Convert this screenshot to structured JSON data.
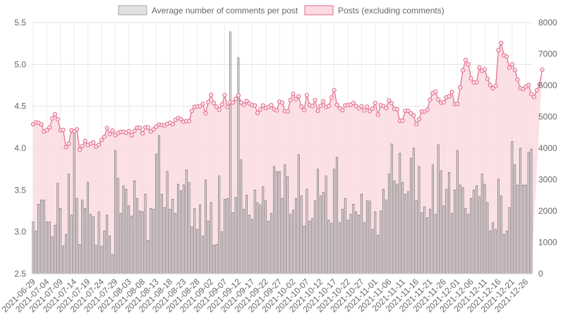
{
  "chart_data": {
    "type": "bar",
    "legend": [
      {
        "label": "Average number of comments per post",
        "color": "#a6a6a6",
        "fill": "#e0e0e0"
      },
      {
        "label": "Posts (excluding comments)",
        "color": "#e26a8a",
        "fill": "#fadbe2"
      }
    ],
    "left_axis": {
      "min": 2.5,
      "max": 5.5,
      "ticks": [
        "2.5",
        "3.0",
        "3.5",
        "4.0",
        "4.5",
        "5.0",
        "5.5"
      ]
    },
    "right_axis": {
      "min": 0,
      "max": 8000,
      "ticks": [
        "0",
        "1000",
        "2000",
        "3000",
        "4000",
        "5000",
        "6000",
        "7000",
        "8000"
      ]
    },
    "x_tick_labels": [
      "2021-06-29",
      "2021-07-04",
      "2021-07-09",
      "2021-07-14",
      "2021-07-19",
      "2021-07-24",
      "2021-07-29",
      "2021-08-03",
      "2021-08-08",
      "2021-08-13",
      "2021-08-18",
      "2021-08-23",
      "2021-08-28",
      "2021-09-02",
      "2021-09-07",
      "2021-09-12",
      "2021-09-17",
      "2021-09-22",
      "2021-09-27",
      "2021-10-02",
      "2021-10-07",
      "2021-10-12",
      "2021-10-17",
      "2021-10-22",
      "2021-10-27",
      "2021-11-01",
      "2021-11-06",
      "2021-11-11",
      "2021-11-16",
      "2021-11-21",
      "2021-11-26",
      "2021-12-01",
      "2021-12-06",
      "2021-12-11",
      "2021-12-16",
      "2021-12-21",
      "2021-12-26"
    ],
    "start_date": "2021-06-29",
    "series": [
      {
        "name": "Average number of comments per post",
        "axis": "left",
        "kind": "bar",
        "values": [
          3.12,
          3.01,
          3.33,
          3.38,
          3.38,
          3.12,
          3.12,
          2.94,
          3.08,
          3.58,
          3.28,
          2.83,
          2.97,
          3.69,
          3.2,
          4.18,
          3.4,
          2.85,
          3.38,
          3.28,
          3.59,
          3.21,
          3.18,
          2.84,
          3.24,
          2.83,
          3.01,
          3.2,
          2.95,
          2.73,
          3.97,
          3.64,
          3.22,
          3.55,
          3.51,
          3.31,
          3.19,
          3.61,
          3.4,
          3.25,
          3.24,
          3.45,
          2.9,
          3.28,
          3.27,
          3.93,
          4.15,
          3.45,
          3.29,
          3.72,
          3.27,
          3.39,
          3.22,
          3.57,
          3.49,
          3.56,
          3.74,
          3.59,
          3.06,
          3.28,
          3.03,
          3.32,
          2.95,
          3.62,
          3.13,
          3.35,
          2.84,
          2.85,
          3.67,
          3.0,
          3.39,
          3.4,
          5.39,
          3.23,
          3.41,
          5.08,
          3.86,
          3.27,
          3.44,
          3.2,
          3.15,
          3.5,
          3.35,
          3.32,
          3.54,
          3.37,
          3.13,
          3.22,
          3.78,
          3.72,
          3.72,
          3.4,
          3.8,
          3.66,
          3.21,
          3.26,
          3.4,
          3.92,
          3.43,
          3.07,
          3.51,
          3.13,
          3.16,
          3.37,
          3.75,
          3.43,
          3.47,
          3.67,
          3.14,
          3.1,
          3.75,
          3.89,
          3.11,
          3.27,
          3.4,
          3.14,
          3.21,
          3.33,
          3.24,
          3.2,
          3.45,
          3.11,
          3.37,
          3.37,
          3.03,
          3.24,
          2.96,
          3.25,
          3.51,
          3.38,
          3.69,
          4.05,
          3.61,
          3.57,
          3.94,
          3.59,
          3.45,
          3.48,
          3.88,
          4.0,
          3.37,
          3.78,
          3.23,
          3.3,
          3.17,
          3.27,
          3.8,
          3.21,
          4.04,
          3.73,
          3.31,
          3.51,
          3.71,
          3.22,
          3.5,
          3.97,
          3.56,
          3.53,
          3.28,
          3.21,
          3.4,
          3.5,
          3.55,
          3.42,
          3.69,
          3.57,
          3.35,
          3.01,
          3.11,
          3.03,
          3.63,
          3.43,
          2.97,
          3.01,
          3.29,
          4.08,
          3.8,
          3.56,
          4.0,
          3.56,
          3.56,
          3.95,
          3.99
        ]
      },
      {
        "name": "Posts (excluding comments)",
        "axis": "right",
        "kind": "area",
        "values": [
          4760,
          4820,
          4800,
          4760,
          4530,
          4570,
          4660,
          4950,
          5080,
          4920,
          4570,
          4580,
          4030,
          4140,
          4570,
          4540,
          4600,
          3950,
          4070,
          4230,
          4100,
          4140,
          4180,
          4050,
          4110,
          4260,
          4360,
          4640,
          4450,
          4560,
          4410,
          4480,
          4520,
          4520,
          4490,
          4540,
          4410,
          4550,
          4650,
          4650,
          4470,
          4660,
          4660,
          4530,
          4600,
          4680,
          4750,
          4740,
          4720,
          4770,
          4810,
          4760,
          4900,
          4960,
          4920,
          4840,
          4860,
          4860,
          5190,
          5320,
          5320,
          5340,
          5410,
          5110,
          5470,
          5700,
          5440,
          5320,
          5230,
          5390,
          5690,
          5310,
          5460,
          5450,
          5570,
          5680,
          5450,
          5380,
          5500,
          5420,
          5370,
          5360,
          5120,
          5230,
          5360,
          5280,
          5310,
          5370,
          5240,
          5200,
          5480,
          5450,
          5180,
          5170,
          5530,
          5730,
          5560,
          5650,
          5330,
          5210,
          5690,
          5370,
          5340,
          5530,
          5190,
          5350,
          5490,
          5310,
          5340,
          5610,
          5850,
          5380,
          5270,
          5210,
          5360,
          5380,
          5380,
          5440,
          5340,
          5270,
          5330,
          5200,
          5320,
          5180,
          5260,
          5440,
          5070,
          5370,
          5340,
          5280,
          5520,
          5430,
          5250,
          5240,
          4870,
          4880,
          5190,
          5190,
          5110,
          5040,
          4760,
          4920,
          5170,
          5160,
          5220,
          5540,
          5750,
          5800,
          5550,
          5450,
          5460,
          5620,
          5650,
          5790,
          5400,
          5410,
          5930,
          6480,
          6810,
          6670,
          6220,
          6090,
          6100,
          6570,
          6460,
          6510,
          6210,
          6010,
          5910,
          5980,
          7120,
          7350,
          6960,
          6920,
          6560,
          6670,
          6490,
          6180,
          5910,
          5880,
          5960,
          6010,
          5720,
          5630,
          5840,
          6040,
          6500
        ]
      }
    ],
    "grid": true,
    "legend_position": "top"
  }
}
